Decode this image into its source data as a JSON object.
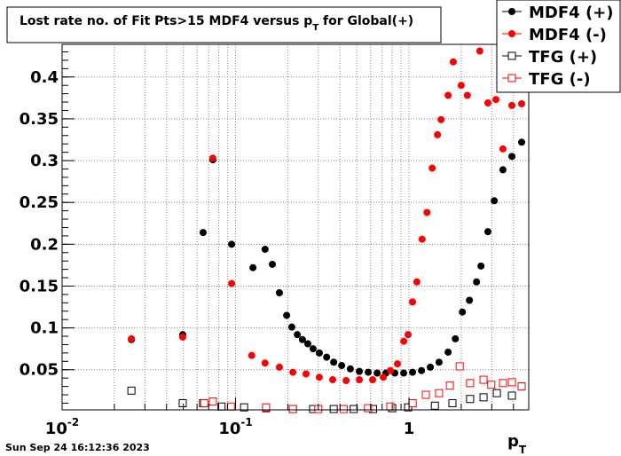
{
  "chart_data": {
    "type": "scatter",
    "title": [
      "Lost rate no. of Fit Pts>15 MDF4 versus p",
      "T",
      " for Global(+)"
    ],
    "xlabel": [
      "p",
      "T"
    ],
    "xscale": "log",
    "xlim": [
      0.01,
      4.9
    ],
    "ylim": [
      0.002,
      0.439
    ],
    "xticks": [
      {
        "value": 0.01,
        "label": "10",
        "exponent": "-2"
      },
      {
        "value": 0.1,
        "label": "10",
        "exponent": "-1"
      },
      1
    ],
    "yticks": [
      0.05,
      0.1,
      0.15,
      0.2,
      0.25,
      0.3,
      0.35,
      0.4
    ],
    "grid": true,
    "legend": "top-right",
    "series": [
      {
        "name": "MDF4 (+)",
        "color": "#000000",
        "marker": "circle",
        "x": [
          0.0251,
          0.0496,
          0.065,
          0.074,
          0.0949,
          0.126,
          0.148,
          0.163,
          0.179,
          0.197,
          0.211,
          0.227,
          0.243,
          0.261,
          0.28,
          0.304,
          0.335,
          0.368,
          0.409,
          0.459,
          0.517,
          0.582,
          0.655,
          0.736,
          0.828,
          0.932,
          1.048,
          1.18,
          1.327,
          1.49,
          1.68,
          1.85,
          2.03,
          2.23,
          2.45,
          2.6,
          2.85,
          3.1,
          3.48,
          3.92,
          4.46
        ],
        "values": [
          0.086,
          0.092,
          0.214,
          0.301,
          0.2,
          0.172,
          0.194,
          0.176,
          0.142,
          0.115,
          0.101,
          0.092,
          0.086,
          0.081,
          0.075,
          0.07,
          0.065,
          0.059,
          0.055,
          0.051,
          0.048,
          0.047,
          0.046,
          0.046,
          0.046,
          0.046,
          0.047,
          0.049,
          0.053,
          0.059,
          0.071,
          0.087,
          0.119,
          0.133,
          0.155,
          0.174,
          0.215,
          0.252,
          0.289,
          0.305,
          0.322
        ]
      },
      {
        "name": "MDF4 (-)",
        "color": "#ff0000",
        "marker": "circle",
        "x": [
          0.0251,
          0.0496,
          0.074,
          0.0949,
          0.124,
          0.148,
          0.179,
          0.214,
          0.255,
          0.304,
          0.363,
          0.434,
          0.517,
          0.617,
          0.711,
          0.781,
          0.858,
          0.932,
          0.988,
          1.048,
          1.11,
          1.19,
          1.27,
          1.36,
          1.46,
          1.53,
          1.68,
          1.8,
          2.0,
          2.17,
          2.56,
          2.85,
          3.17,
          3.48,
          3.92,
          4.46
        ],
        "values": [
          0.087,
          0.089,
          0.303,
          0.153,
          0.067,
          0.058,
          0.053,
          0.047,
          0.045,
          0.041,
          0.038,
          0.037,
          0.038,
          0.038,
          0.041,
          0.049,
          0.057,
          0.084,
          0.092,
          0.131,
          0.155,
          0.206,
          0.238,
          0.291,
          0.331,
          0.349,
          0.378,
          0.418,
          0.39,
          0.378,
          0.431,
          0.369,
          0.373,
          0.314,
          0.366,
          0.368
        ]
      },
      {
        "name": "TFG (+)",
        "color": "#000000",
        "marker": "square-open",
        "x": [
          0.0251,
          0.0496,
          0.065,
          0.083,
          0.112,
          0.15,
          0.214,
          0.28,
          0.368,
          0.48,
          0.62,
          0.8,
          0.988,
          1.41,
          1.78,
          2.25,
          2.69,
          3.21,
          3.92,
          4.46
        ],
        "values": [
          0.025,
          0.01,
          0.01,
          0.006,
          0.005,
          0.004,
          0.003,
          0.003,
          0.003,
          0.003,
          0.003,
          0.004,
          0.005,
          0.007,
          0.01,
          0.015,
          0.017,
          0.022,
          0.019,
          0.03
        ]
      },
      {
        "name": "TFG (-)",
        "color": "#ff0000",
        "marker": "square-open",
        "x": [
          0.066,
          0.074,
          0.094,
          0.15,
          0.214,
          0.3,
          0.42,
          0.58,
          0.78,
          1.05,
          1.25,
          1.49,
          1.72,
          1.96,
          2.25,
          2.69,
          2.98,
          3.48,
          3.92,
          4.46
        ],
        "values": [
          0.01,
          0.012,
          0.006,
          0.005,
          0.003,
          0.003,
          0.003,
          0.004,
          0.006,
          0.01,
          0.02,
          0.022,
          0.031,
          0.054,
          0.034,
          0.038,
          0.032,
          0.034,
          0.035,
          0.03
        ]
      }
    ]
  },
  "footer": "Sun Sep 24 16:12:36 2023"
}
